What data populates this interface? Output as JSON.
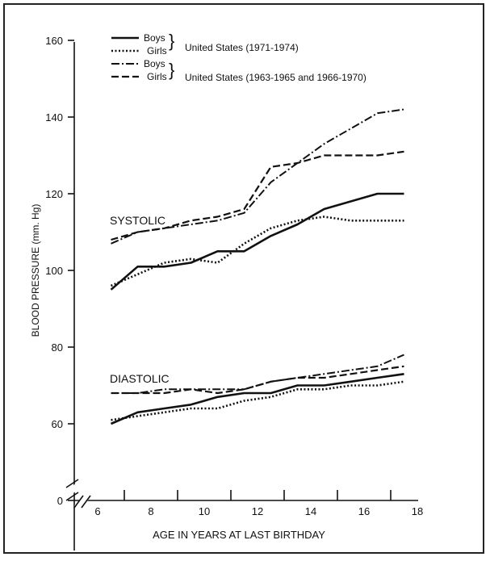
{
  "chart_data": {
    "type": "line",
    "title": "",
    "xlabel": "AGE IN YEARS AT LAST BIRTHDAY",
    "ylabel": "BLOOD PRESSURE (mm. Hg)",
    "x_ticks": [
      "6",
      "8",
      "10",
      "12",
      "14",
      "16",
      "18"
    ],
    "y_ticks": [
      "0",
      "60",
      "80",
      "100",
      "120",
      "140",
      "160"
    ],
    "xlim": [
      5,
      19
    ],
    "ylim": [
      0,
      160
    ],
    "axis_break": "between 0 and 60",
    "grid": false,
    "legend_position": "top-left",
    "legend": {
      "entries": [
        "Boys",
        "Girls",
        "Boys",
        "Girls"
      ],
      "groups": [
        "United States (1971-1974)",
        "United States (1963-1965 and 1966-1970)"
      ]
    },
    "annotations": [
      "SYSTOLIC",
      "DIASTOLIC"
    ],
    "x": [
      6.5,
      7.5,
      8.5,
      9.5,
      10.5,
      11.5,
      12.5,
      13.5,
      14.5,
      15.5,
      16.5,
      17.5
    ],
    "series": [
      {
        "name": "Boys",
        "group": "United States (1971-1974)",
        "measure": "SYSTOLIC",
        "style": "solid",
        "values": [
          95,
          101,
          101,
          102,
          105,
          105,
          109,
          112,
          116,
          118,
          120,
          120
        ]
      },
      {
        "name": "Girls",
        "group": "United States (1971-1974)",
        "measure": "SYSTOLIC",
        "style": "dotted",
        "values": [
          96,
          99,
          102,
          103,
          102,
          107,
          111,
          113,
          114,
          113,
          113,
          113
        ]
      },
      {
        "name": "Boys",
        "group": "United States (1963-1965 and 1966-1970)",
        "measure": "SYSTOLIC",
        "style": "dash-dot",
        "values": [
          107,
          110,
          111,
          112,
          113,
          115,
          123,
          128,
          133,
          137,
          141,
          142
        ]
      },
      {
        "name": "Girls",
        "group": "United States (1963-1965 and 1966-1970)",
        "measure": "SYSTOLIC",
        "style": "dashed",
        "values": [
          108,
          110,
          111,
          113,
          114,
          116,
          127,
          128,
          130,
          130,
          130,
          131
        ]
      },
      {
        "name": "Boys",
        "group": "United States (1971-1974)",
        "measure": "DIASTOLIC",
        "style": "solid",
        "values": [
          60,
          63,
          64,
          65,
          67,
          68,
          68,
          70,
          70,
          71,
          72,
          73
        ]
      },
      {
        "name": "Girls",
        "group": "United States (1971-1974)",
        "measure": "DIASTOLIC",
        "style": "dotted",
        "values": [
          61,
          62,
          63,
          64,
          64,
          66,
          67,
          69,
          69,
          70,
          70,
          71
        ]
      },
      {
        "name": "Boys",
        "group": "United States (1963-1965 and 1966-1970)",
        "measure": "DIASTOLIC",
        "style": "dash-dot",
        "values": [
          68,
          68,
          69,
          69,
          69,
          69,
          71,
          72,
          73,
          74,
          75,
          78
        ]
      },
      {
        "name": "Girls",
        "group": "United States (1963-1965 and 1966-1970)",
        "measure": "DIASTOLIC",
        "style": "dashed",
        "values": [
          68,
          68,
          68,
          69,
          68,
          69,
          71,
          72,
          72,
          73,
          74,
          75
        ]
      }
    ]
  }
}
